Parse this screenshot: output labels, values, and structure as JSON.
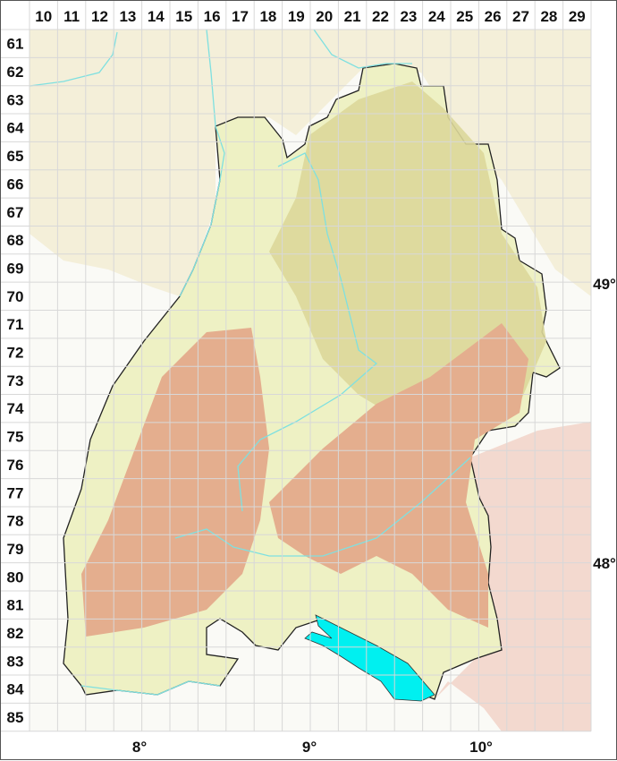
{
  "grid": {
    "columns": [
      "10",
      "11",
      "12",
      "13",
      "14",
      "15",
      "16",
      "17",
      "18",
      "19",
      "20",
      "21",
      "22",
      "23",
      "24",
      "25",
      "26",
      "27",
      "28",
      "29"
    ],
    "rows": [
      "61",
      "62",
      "63",
      "64",
      "65",
      "66",
      "67",
      "68",
      "69",
      "70",
      "71",
      "72",
      "73",
      "74",
      "75",
      "76",
      "77",
      "78",
      "79",
      "80",
      "81",
      "82",
      "83",
      "84",
      "85"
    ]
  },
  "latitude_labels": [
    "49°",
    "48°"
  ],
  "longitude_labels": [
    "8°",
    "9°",
    "10°"
  ],
  "colors": {
    "lowland": "#eef1c4",
    "hills": "#dcd79a",
    "upland": "#e4ae8e",
    "outside_north": "#f4efd9",
    "outside_southeast": "#f3d9cf",
    "lake": "#00f0f0",
    "rivers": "#7fe0e0",
    "grid": "#d8d8d8"
  }
}
